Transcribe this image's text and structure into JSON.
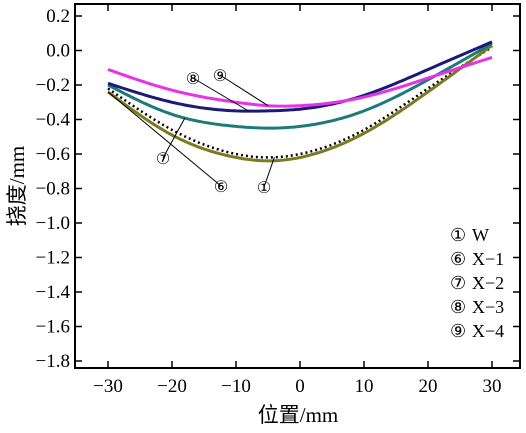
{
  "chart_data": {
    "type": "line",
    "xlabel": "位置/mm",
    "ylabel": "挠度/mm",
    "xlim": [
      -30,
      30
    ],
    "ylim": [
      -1.8,
      0.2
    ],
    "xticks": [
      -30,
      -20,
      -10,
      0,
      10,
      20,
      30
    ],
    "xtick_labels": [
      "−30",
      "−20",
      "−10",
      "0",
      "10",
      "20",
      "30"
    ],
    "yticks": [
      0.2,
      0.0,
      -0.2,
      -0.4,
      -0.6,
      -0.8,
      -1.0,
      -1.2,
      -1.4,
      -1.6,
      -1.8
    ],
    "ytick_labels": [
      "0.2",
      "0.0",
      "−0.2",
      "−0.4",
      "−0.6",
      "−0.8",
      "−1.0",
      "−1.2",
      "−1.4",
      "−1.6",
      "−1.8"
    ],
    "grid": false,
    "legend_position": "bottom-right",
    "series": [
      {
        "name": "W",
        "marker": "①",
        "color": "#000000",
        "dash": "dotted",
        "x": [
          -30,
          -20,
          -10,
          -5,
          0,
          10,
          20,
          30
        ],
        "y": [
          -0.22,
          -0.46,
          -0.6,
          -0.62,
          -0.6,
          -0.46,
          -0.22,
          0.02
        ]
      },
      {
        "name": "X-1",
        "marker": "⑥",
        "color": "#7a7a1e",
        "dash": "solid",
        "x": [
          -30,
          -20,
          -10,
          -5,
          0,
          10,
          20,
          30
        ],
        "y": [
          -0.24,
          -0.49,
          -0.62,
          -0.64,
          -0.62,
          -0.48,
          -0.24,
          0.03
        ]
      },
      {
        "name": "X-2",
        "marker": "⑦",
        "color": "#1e7a7a",
        "dash": "solid",
        "x": [
          -30,
          -20,
          -10,
          -5,
          0,
          10,
          20,
          30
        ],
        "y": [
          -0.2,
          -0.37,
          -0.44,
          -0.45,
          -0.44,
          -0.35,
          -0.17,
          0.04
        ]
      },
      {
        "name": "X-3",
        "marker": "⑧",
        "color": "#1a1a78",
        "dash": "solid",
        "x": [
          -30,
          -20,
          -10,
          -5,
          0,
          10,
          20,
          30
        ],
        "y": [
          -0.19,
          -0.3,
          -0.35,
          -0.35,
          -0.34,
          -0.26,
          -0.11,
          0.05
        ]
      },
      {
        "name": "X-4",
        "marker": "⑨",
        "color": "#e633e6",
        "dash": "solid",
        "x": [
          -30,
          -20,
          -10,
          -5,
          0,
          10,
          20,
          30
        ],
        "y": [
          -0.11,
          -0.23,
          -0.3,
          -0.32,
          -0.32,
          -0.27,
          -0.16,
          -0.04
        ]
      }
    ],
    "legend": [
      {
        "marker": "①",
        "label": "W"
      },
      {
        "marker": "⑥",
        "label": "X−1"
      },
      {
        "marker": "⑦",
        "label": "X−2"
      },
      {
        "marker": "⑧",
        "label": "X−3"
      },
      {
        "marker": "⑨",
        "label": "X−4"
      }
    ],
    "annotations": [
      {
        "text": "⑧",
        "series": "X-3"
      },
      {
        "text": "⑨",
        "series": "X-4"
      },
      {
        "text": "⑦",
        "series": "X-2"
      },
      {
        "text": "⑥",
        "series": "X-1"
      },
      {
        "text": "①",
        "series": "W"
      }
    ]
  }
}
